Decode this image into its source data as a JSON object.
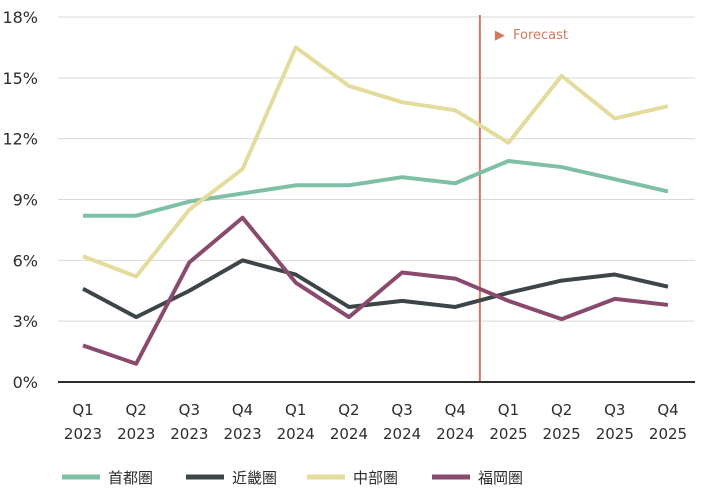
{
  "chart_data": {
    "type": "line",
    "title": "",
    "xlabel": "",
    "ylabel": "",
    "ylim": [
      0,
      18
    ],
    "y_ticks": [
      0,
      3,
      6,
      9,
      12,
      15,
      18
    ],
    "y_tick_suffix": "%",
    "grid": "horizontal",
    "legend_position": "bottom",
    "categories": [
      {
        "quarter": "Q1",
        "year": "2023"
      },
      {
        "quarter": "Q2",
        "year": "2023"
      },
      {
        "quarter": "Q3",
        "year": "2023"
      },
      {
        "quarter": "Q4",
        "year": "2023"
      },
      {
        "quarter": "Q1",
        "year": "2024"
      },
      {
        "quarter": "Q2",
        "year": "2024"
      },
      {
        "quarter": "Q3",
        "year": "2024"
      },
      {
        "quarter": "Q4",
        "year": "2024"
      },
      {
        "quarter": "Q1",
        "year": "2025"
      },
      {
        "quarter": "Q2",
        "year": "2025"
      },
      {
        "quarter": "Q3",
        "year": "2025"
      },
      {
        "quarter": "Q4",
        "year": "2025"
      }
    ],
    "series": [
      {
        "name": "首都圏",
        "color": "#7fbfa6",
        "values": [
          8.2,
          8.2,
          8.9,
          9.3,
          9.7,
          9.7,
          10.1,
          9.8,
          10.9,
          10.6,
          10.0,
          9.4
        ]
      },
      {
        "name": "近畿圏",
        "color": "#3c4547",
        "values": [
          4.6,
          3.2,
          4.5,
          6.0,
          5.3,
          3.7,
          4.0,
          3.7,
          4.4,
          5.0,
          5.3,
          4.7
        ]
      },
      {
        "name": "中部圏",
        "color": "#e3dc9c",
        "values": [
          6.2,
          5.2,
          8.5,
          10.5,
          16.5,
          14.6,
          13.8,
          13.4,
          11.8,
          15.1,
          13.0,
          13.6
        ]
      },
      {
        "name": "福岡圏",
        "color": "#8a4a6e",
        "values": [
          1.8,
          0.9,
          5.9,
          8.1,
          4.9,
          3.2,
          5.4,
          5.1,
          4.0,
          3.1,
          4.1,
          3.8
        ]
      }
    ],
    "forecast": {
      "label": "Forecast",
      "marker": "▶",
      "after_category_index": 7.5,
      "color": "#d07a5e"
    }
  }
}
